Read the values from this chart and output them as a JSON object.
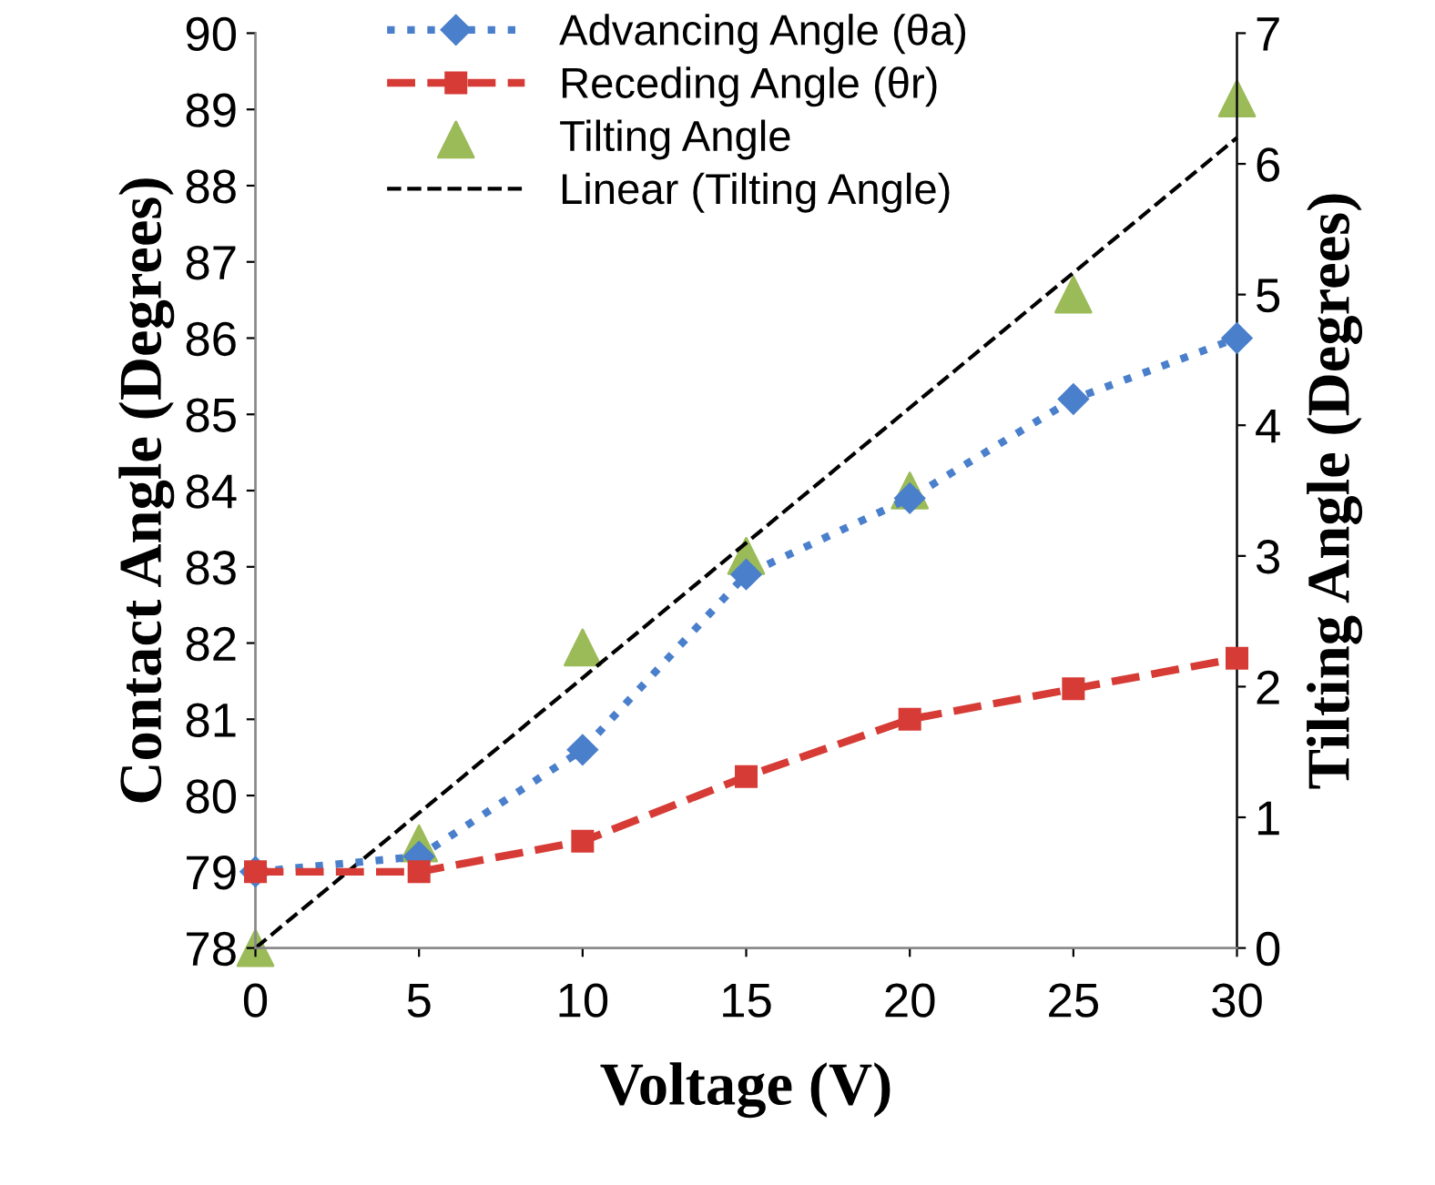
{
  "chart_data": {
    "type": "line",
    "xlabel": "Voltage (V)",
    "ylabel": "Contact Angle (Degrees)",
    "y2label": "Tilting Angle (Degrees)",
    "x": [
      0,
      5,
      10,
      15,
      20,
      25,
      30
    ],
    "series": [
      {
        "name": "Advancing Angle (θa)",
        "color": "#4a7fcc",
        "values": [
          79.0,
          79.2,
          80.6,
          82.9,
          83.9,
          85.2,
          86.0
        ],
        "marker": "diamond",
        "line_style": "dotted"
      },
      {
        "name": "Receding Angle (θr)",
        "color": "#d63b35",
        "values": [
          79.0,
          79.0,
          79.4,
          80.25,
          81.0,
          81.4,
          81.8
        ],
        "marker": "square",
        "line_style": "dashed"
      },
      {
        "name": "Tilting Angle",
        "type": "scatter",
        "axis": "y2",
        "color": "#9bbb59",
        "values": [
          0,
          0.8,
          2.3,
          3.0,
          3.5,
          5.0,
          6.5
        ],
        "marker": "triangle"
      },
      {
        "name": "Linear (Tilting Angle)",
        "type": "line",
        "axis": "y2",
        "color": "#000000",
        "x": [
          0,
          30
        ],
        "values": [
          0,
          6.2
        ],
        "marker": "none",
        "line_style": "dashed"
      }
    ],
    "xlim": [
      0,
      30
    ],
    "xticks": [
      0,
      5,
      10,
      15,
      20,
      25,
      30
    ],
    "ylim": [
      78,
      90
    ],
    "yticks": [
      78,
      79,
      80,
      81,
      82,
      83,
      84,
      85,
      86,
      87,
      88,
      89,
      90
    ],
    "y2lim": [
      0,
      7
    ],
    "y2ticks": [
      0,
      1,
      2,
      3,
      4,
      5,
      6,
      7
    ],
    "grid": false,
    "legend": "top"
  }
}
